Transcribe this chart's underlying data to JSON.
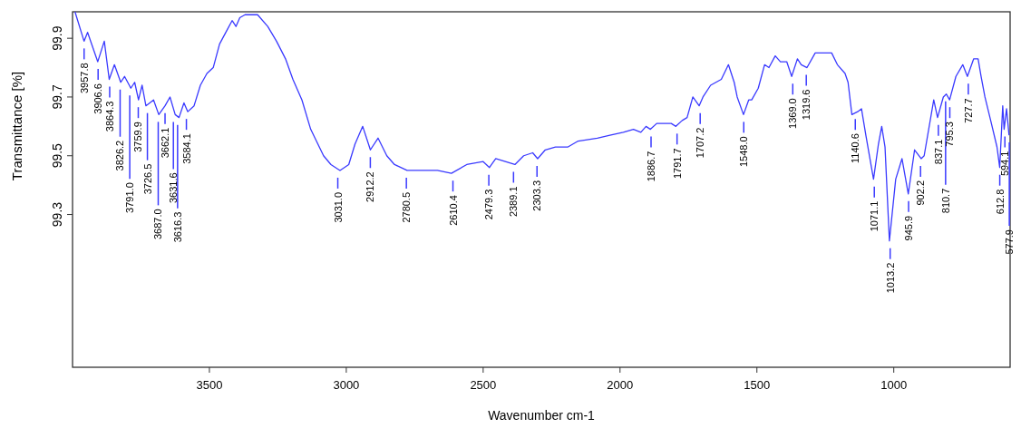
{
  "chart_data": {
    "type": "line",
    "xlabel": "Wavenumber cm-1",
    "ylabel": "Transmittance [%]",
    "color": "#3a3aff",
    "x": [
      3991,
      3958,
      3945,
      3908,
      3884,
      3866,
      3847,
      3824,
      3810,
      3787,
      3773,
      3759,
      3746,
      3732,
      3704,
      3685,
      3662,
      3644,
      3625,
      3611,
      3593,
      3579,
      3556,
      3533,
      3509,
      3486,
      3463,
      3440,
      3417,
      3403,
      3389,
      3370,
      3347,
      3324,
      3287,
      3255,
      3222,
      3195,
      3162,
      3130,
      3083,
      3056,
      3023,
      2991,
      2968,
      2940,
      2912,
      2884,
      2852,
      2824,
      2778,
      2667,
      2616,
      2560,
      2500,
      2477,
      2454,
      2384,
      2352,
      2319,
      2301,
      2273,
      2236,
      2190,
      2153,
      2083,
      2037,
      1988,
      1951,
      1924,
      1905,
      1889,
      1866,
      1836,
      1813,
      1796,
      1773,
      1755,
      1734,
      1711,
      1697,
      1669,
      1630,
      1604,
      1583,
      1572,
      1549,
      1530,
      1519,
      1495,
      1472,
      1456,
      1433,
      1414,
      1391,
      1373,
      1352,
      1338,
      1317,
      1287,
      1257,
      1241,
      1227,
      1206,
      1178,
      1167,
      1153,
      1132,
      1118,
      1102,
      1074,
      1056,
      1044,
      1032,
      1016,
      993,
      970,
      947,
      924,
      900,
      889,
      854,
      840,
      819,
      808,
      796,
      773,
      748,
      731,
      708,
      692,
      681,
      667,
      646,
      623,
      613,
      602,
      597,
      588,
      579
    ],
    "values": [
      99.99,
      99.89,
      99.92,
      99.82,
      99.89,
      99.76,
      99.81,
      99.75,
      99.77,
      99.73,
      99.75,
      99.69,
      99.74,
      99.67,
      99.69,
      99.64,
      99.67,
      99.7,
      99.64,
      99.63,
      99.68,
      99.65,
      99.67,
      99.74,
      99.78,
      99.8,
      99.88,
      99.92,
      99.96,
      99.94,
      99.97,
      99.98,
      99.98,
      99.98,
      99.94,
      99.89,
      99.83,
      99.76,
      99.69,
      99.59,
      99.5,
      99.47,
      99.45,
      99.47,
      99.54,
      99.6,
      99.52,
      99.56,
      99.5,
      99.47,
      99.45,
      99.45,
      99.44,
      99.47,
      99.48,
      99.46,
      99.49,
      99.47,
      99.5,
      99.51,
      99.49,
      99.52,
      99.53,
      99.53,
      99.55,
      99.56,
      99.57,
      99.58,
      99.59,
      99.58,
      99.6,
      99.59,
      99.61,
      99.61,
      99.61,
      99.6,
      99.62,
      99.63,
      99.7,
      99.67,
      99.7,
      99.74,
      99.76,
      99.81,
      99.75,
      99.7,
      99.64,
      99.69,
      99.69,
      99.73,
      99.81,
      99.8,
      99.84,
      99.82,
      99.82,
      99.77,
      99.83,
      99.81,
      99.8,
      99.85,
      99.85,
      99.85,
      99.85,
      99.81,
      99.78,
      99.75,
      99.64,
      99.65,
      99.66,
      99.57,
      99.42,
      99.54,
      99.6,
      99.53,
      99.21,
      99.42,
      99.49,
      99.37,
      99.52,
      99.49,
      99.5,
      99.69,
      99.63,
      99.7,
      99.71,
      99.69,
      99.77,
      99.81,
      99.77,
      99.83,
      99.83,
      99.77,
      99.7,
      99.62,
      99.53,
      99.46,
      99.67,
      99.59,
      99.66,
      99.57
    ],
    "xlim": [
      4000,
      575
    ],
    "ylim": [
      98.78,
      99.99
    ],
    "xticks": [
      3500,
      3000,
      2500,
      2000,
      1500,
      1000
    ],
    "yticks": [
      99.3,
      99.5,
      99.7,
      99.9
    ],
    "annotations": [
      {
        "text": "3957.8",
        "x": 3957.8,
        "y": 99.89
      },
      {
        "text": "3906.6",
        "x": 3906.6,
        "y": 99.82
      },
      {
        "text": "3864.3",
        "x": 3864.3,
        "y": 99.76
      },
      {
        "text": "3826.2",
        "x": 3826.2,
        "y": 99.75
      },
      {
        "text": "3791.0",
        "x": 3791.0,
        "y": 99.73
      },
      {
        "text": "3759.9",
        "x": 3759.9,
        "y": 99.69
      },
      {
        "text": "3726.5",
        "x": 3726.5,
        "y": 99.67
      },
      {
        "text": "3687.0",
        "x": 3687.0,
        "y": 99.64
      },
      {
        "text": "3662.1",
        "x": 3662.1,
        "y": 99.67
      },
      {
        "text": "3631.6",
        "x": 3631.6,
        "y": 99.64
      },
      {
        "text": "3616.3",
        "x": 3616.3,
        "y": 99.63
      },
      {
        "text": "3584.1",
        "x": 3584.1,
        "y": 99.65
      },
      {
        "text": "3031.0",
        "x": 3031.0,
        "y": 99.45
      },
      {
        "text": "2912.2",
        "x": 2912.2,
        "y": 99.52
      },
      {
        "text": "2780.5",
        "x": 2780.5,
        "y": 99.45
      },
      {
        "text": "2610.4",
        "x": 2610.4,
        "y": 99.44
      },
      {
        "text": "2479.3",
        "x": 2479.3,
        "y": 99.46
      },
      {
        "text": "2389.1",
        "x": 2389.1,
        "y": 99.47
      },
      {
        "text": "2303.3",
        "x": 2303.3,
        "y": 99.49
      },
      {
        "text": "1886.7",
        "x": 1886.7,
        "y": 99.59
      },
      {
        "text": "1791.7",
        "x": 1791.7,
        "y": 99.6
      },
      {
        "text": "1707.2",
        "x": 1707.2,
        "y": 99.67
      },
      {
        "text": "1548.0",
        "x": 1548.0,
        "y": 99.64
      },
      {
        "text": "1369.0",
        "x": 1369.0,
        "y": 99.77
      },
      {
        "text": "1319.6",
        "x": 1319.6,
        "y": 99.8
      },
      {
        "text": "1140.6",
        "x": 1140.6,
        "y": 99.65
      },
      {
        "text": "1071.1",
        "x": 1071.1,
        "y": 99.42
      },
      {
        "text": "1013.2",
        "x": 1013.2,
        "y": 99.21
      },
      {
        "text": "945.9",
        "x": 945.9,
        "y": 99.37
      },
      {
        "text": "902.2",
        "x": 902.2,
        "y": 99.49
      },
      {
        "text": "837.1",
        "x": 837.1,
        "y": 99.63
      },
      {
        "text": "810.7",
        "x": 810.7,
        "y": 99.71
      },
      {
        "text": "795.3",
        "x": 795.3,
        "y": 99.69
      },
      {
        "text": "727.7",
        "x": 727.7,
        "y": 99.77
      },
      {
        "text": "612.8",
        "x": 612.8,
        "y": 99.46
      },
      {
        "text": "594.1",
        "x": 594.1,
        "y": 99.59
      },
      {
        "text": "577.9",
        "x": 577.9,
        "y": 99.57
      }
    ]
  }
}
